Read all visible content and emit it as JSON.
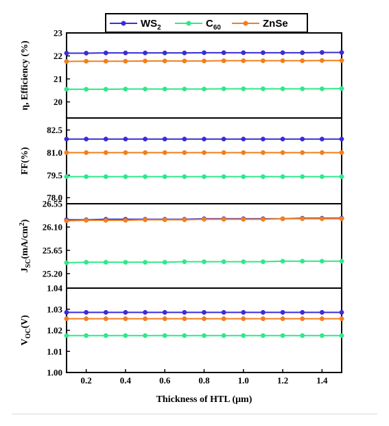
{
  "chart_data": {
    "type": "line",
    "x": [
      0.1,
      0.2,
      0.3,
      0.4,
      0.5,
      0.6,
      0.7,
      0.8,
      0.9,
      1.0,
      1.1,
      1.2,
      1.3,
      1.4,
      1.5
    ],
    "xlabel": "Thickness of HTL (μm)",
    "xlim": [
      0.1,
      1.5
    ],
    "xticks": [
      "0.2",
      "0.4",
      "0.6",
      "0.8",
      "1.0",
      "1.2",
      "1.4"
    ],
    "legend": {
      "placement": "top",
      "entries": [
        {
          "key": "WS2",
          "label": "WS",
          "sub": "2",
          "color": "#3a2cd6"
        },
        {
          "key": "C60",
          "label": "C",
          "sub": "60",
          "color": "#2ee88a"
        },
        {
          "key": "ZnSe",
          "label": "ZnSe",
          "sub": "",
          "color": "#f07f1e"
        }
      ]
    },
    "panels": [
      {
        "ylabel": "η, Efficiency (%)",
        "ylim": [
          19.3,
          23
        ],
        "yticks": [
          "20",
          "21",
          "22",
          "23"
        ],
        "series": [
          {
            "name": "WS2",
            "values": [
              22.12,
              22.12,
              22.13,
              22.13,
              22.13,
              22.13,
              22.13,
              22.14,
              22.14,
              22.14,
              22.14,
              22.14,
              22.14,
              22.15,
              22.15
            ]
          },
          {
            "name": "C60",
            "values": [
              20.55,
              20.55,
              20.55,
              20.56,
              20.56,
              20.56,
              20.56,
              20.56,
              20.57,
              20.57,
              20.57,
              20.57,
              20.57,
              20.57,
              20.58
            ]
          },
          {
            "name": "ZnSe",
            "values": [
              21.76,
              21.77,
              21.77,
              21.77,
              21.78,
              21.78,
              21.78,
              21.78,
              21.79,
              21.79,
              21.79,
              21.79,
              21.79,
              21.8,
              21.8
            ]
          }
        ]
      },
      {
        "ylabel": "FF(%)",
        "ylim": [
          77.6,
          83.3
        ],
        "yticks": [
          "78.0",
          "79.5",
          "81.0",
          "82.5"
        ],
        "series": [
          {
            "name": "WS2",
            "values": [
              81.9,
              81.9,
              81.9,
              81.9,
              81.9,
              81.9,
              81.9,
              81.9,
              81.9,
              81.9,
              81.9,
              81.9,
              81.9,
              81.9,
              81.9
            ]
          },
          {
            "name": "C60",
            "values": [
              79.4,
              79.4,
              79.4,
              79.4,
              79.4,
              79.4,
              79.4,
              79.4,
              79.4,
              79.4,
              79.4,
              79.4,
              79.4,
              79.4,
              79.4
            ]
          },
          {
            "name": "ZnSe",
            "values": [
              81.0,
              81.0,
              81.0,
              81.0,
              81.0,
              81.0,
              81.0,
              81.0,
              81.0,
              81.0,
              81.0,
              81.0,
              81.0,
              81.0,
              81.0
            ]
          }
        ]
      },
      {
        "ylabel": "JSC(mA/cm2)",
        "ylim": [
          24.92,
          26.55
        ],
        "yticks": [
          "25.20",
          "25.65",
          "26.10",
          "26.55"
        ],
        "series": [
          {
            "name": "WS2",
            "values": [
              26.24,
              26.24,
              26.25,
              26.25,
              26.25,
              26.25,
              26.25,
              26.26,
              26.26,
              26.26,
              26.26,
              26.26,
              26.27,
              26.27,
              26.27
            ]
          },
          {
            "name": "C60",
            "values": [
              25.41,
              25.42,
              25.42,
              25.42,
              25.42,
              25.42,
              25.43,
              25.43,
              25.43,
              25.43,
              25.43,
              25.44,
              25.44,
              25.44,
              25.44
            ]
          },
          {
            "name": "ZnSe",
            "values": [
              26.22,
              26.23,
              26.23,
              26.23,
              26.24,
              26.24,
              26.24,
              26.25,
              26.25,
              26.25,
              26.25,
              26.26,
              26.26,
              26.26,
              26.26
            ]
          }
        ]
      },
      {
        "ylabel": "VOC(V)",
        "ylim": [
          1.0,
          1.04
        ],
        "yticks": [
          "1.00",
          "1.01",
          "1.02",
          "1.03",
          "1.04"
        ],
        "series": [
          {
            "name": "WS2",
            "values": [
              1.0285,
              1.0285,
              1.0285,
              1.0285,
              1.0285,
              1.0285,
              1.0285,
              1.0285,
              1.0285,
              1.0285,
              1.0285,
              1.0285,
              1.0285,
              1.0285,
              1.0285
            ]
          },
          {
            "name": "C60",
            "values": [
              1.0175,
              1.0175,
              1.0175,
              1.0175,
              1.0175,
              1.0175,
              1.0175,
              1.0175,
              1.0175,
              1.0175,
              1.0175,
              1.0175,
              1.0175,
              1.0175,
              1.0175
            ]
          },
          {
            "name": "ZnSe",
            "values": [
              1.0255,
              1.0255,
              1.0255,
              1.0255,
              1.0255,
              1.0255,
              1.0255,
              1.0255,
              1.0255,
              1.0255,
              1.0255,
              1.0255,
              1.0255,
              1.0255,
              1.0255
            ]
          }
        ]
      }
    ]
  }
}
